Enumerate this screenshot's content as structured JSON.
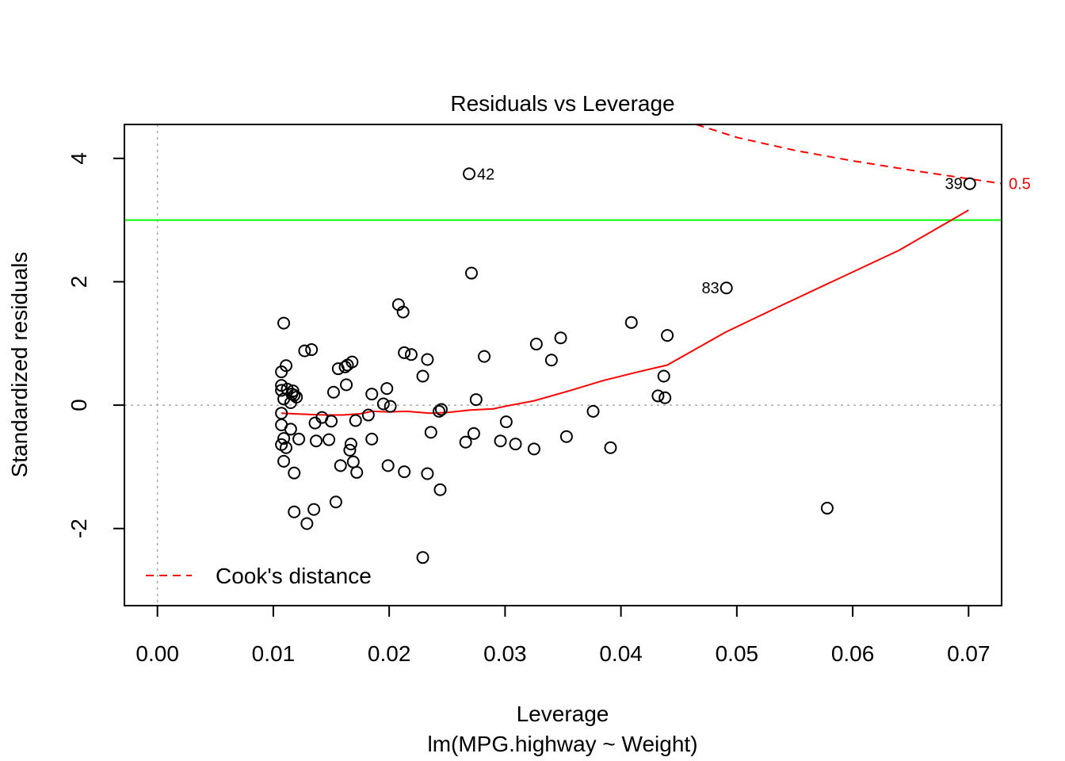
{
  "chart_data": {
    "type": "scatter",
    "title": "Residuals vs Leverage",
    "xlabel": "Leverage",
    "subtitle": "lm(MPG.highway ~ Weight)",
    "ylabel": "Standardized residuals",
    "xlim": [
      -0.00285,
      0.07285
    ],
    "ylim": [
      -3.25,
      4.55
    ],
    "xticks": [
      0.0,
      0.01,
      0.02,
      0.03,
      0.04,
      0.05,
      0.06,
      0.07
    ],
    "xtick_labels": [
      "0.00",
      "0.01",
      "0.02",
      "0.03",
      "0.04",
      "0.05",
      "0.06",
      "0.07"
    ],
    "yticks": [
      -2,
      0,
      2,
      4
    ],
    "ytick_labels": [
      "-2",
      "0",
      "2",
      "4"
    ],
    "zero_reference_lines": true,
    "threshold_line": {
      "y": 3,
      "color": "#00ff00"
    },
    "cooks_contour": {
      "level_label": "0.5",
      "color": "#ff0000",
      "x": [
        0.0465,
        0.05,
        0.055,
        0.06,
        0.065,
        0.07,
        0.0729
      ],
      "y": [
        4.55,
        4.34,
        4.13,
        3.96,
        3.81,
        3.67,
        3.59
      ]
    },
    "smoother": {
      "color": "#ff0000",
      "x": [
        0.0107,
        0.013,
        0.0145,
        0.016,
        0.0175,
        0.0185,
        0.02,
        0.0215,
        0.0235,
        0.025,
        0.027,
        0.029,
        0.0297,
        0.0325,
        0.0355,
        0.0385,
        0.0415,
        0.044,
        0.049,
        0.054,
        0.059,
        0.064,
        0.07
      ],
      "y": [
        -0.13,
        -0.15,
        -0.16,
        -0.16,
        -0.14,
        -0.1,
        -0.11,
        -0.1,
        -0.13,
        -0.12,
        -0.08,
        -0.06,
        -0.03,
        0.07,
        0.23,
        0.4,
        0.54,
        0.65,
        1.18,
        1.63,
        2.07,
        2.51,
        3.16
      ]
    },
    "point_labels": [
      {
        "text": "42",
        "x": 0.0269,
        "y": 3.75,
        "side": "right"
      },
      {
        "text": "39",
        "x": 0.0701,
        "y": 3.59,
        "side": "left"
      },
      {
        "text": "83",
        "x": 0.0491,
        "y": 1.9,
        "side": "left"
      }
    ],
    "legend": {
      "entries": [
        "Cook's distance"
      ],
      "position": "bottom-left"
    },
    "points": [
      [
        0.0269,
        3.75
      ],
      [
        0.0701,
        3.59
      ],
      [
        0.0491,
        1.9
      ],
      [
        0.0271,
        2.14
      ],
      [
        0.0578,
        -1.67
      ],
      [
        0.0109,
        1.33
      ],
      [
        0.0127,
        0.88
      ],
      [
        0.0133,
        0.9
      ],
      [
        0.0111,
        0.64
      ],
      [
        0.0107,
        0.54
      ],
      [
        0.0156,
        0.59
      ],
      [
        0.0162,
        0.62
      ],
      [
        0.0164,
        0.65
      ],
      [
        0.0168,
        0.7
      ],
      [
        0.0163,
        0.33
      ],
      [
        0.0107,
        0.32
      ],
      [
        0.0107,
        0.24
      ],
      [
        0.0112,
        0.26
      ],
      [
        0.0117,
        0.23
      ],
      [
        0.0116,
        0.18
      ],
      [
        0.0118,
        0.16
      ],
      [
        0.012,
        0.13
      ],
      [
        0.0109,
        0.1
      ],
      [
        0.0115,
        0.04
      ],
      [
        0.0152,
        0.21
      ],
      [
        0.0107,
        -0.13
      ],
      [
        0.0107,
        -0.32
      ],
      [
        0.0115,
        -0.39
      ],
      [
        0.0109,
        -0.54
      ],
      [
        0.0107,
        -0.64
      ],
      [
        0.0111,
        -0.69
      ],
      [
        0.0109,
        -0.91
      ],
      [
        0.0118,
        -1.1
      ],
      [
        0.0122,
        -0.55
      ],
      [
        0.0136,
        -0.29
      ],
      [
        0.0142,
        -0.2
      ],
      [
        0.015,
        -0.26
      ],
      [
        0.0137,
        -0.58
      ],
      [
        0.0148,
        -0.56
      ],
      [
        0.0158,
        -0.98
      ],
      [
        0.0167,
        -0.63
      ],
      [
        0.0166,
        -0.73
      ],
      [
        0.0169,
        -0.92
      ],
      [
        0.0172,
        -1.09
      ],
      [
        0.0171,
        -0.25
      ],
      [
        0.0182,
        -0.16
      ],
      [
        0.0185,
        0.18
      ],
      [
        0.0195,
        0.02
      ],
      [
        0.0198,
        0.27
      ],
      [
        0.0201,
        -0.02
      ],
      [
        0.0185,
        -0.55
      ],
      [
        0.0199,
        -0.98
      ],
      [
        0.0213,
        -1.08
      ],
      [
        0.0208,
        1.63
      ],
      [
        0.0212,
        1.51
      ],
      [
        0.0213,
        0.85
      ],
      [
        0.0219,
        0.82
      ],
      [
        0.0233,
        0.74
      ],
      [
        0.0229,
        0.47
      ],
      [
        0.0236,
        -0.44
      ],
      [
        0.0243,
        -0.1
      ],
      [
        0.0245,
        -0.07
      ],
      [
        0.0233,
        -1.11
      ],
      [
        0.0244,
        -1.37
      ],
      [
        0.0229,
        -2.47
      ],
      [
        0.0118,
        -1.73
      ],
      [
        0.0135,
        -1.69
      ],
      [
        0.0154,
        -1.57
      ],
      [
        0.0129,
        -1.92
      ],
      [
        0.0275,
        0.09
      ],
      [
        0.0282,
        0.79
      ],
      [
        0.0273,
        -0.46
      ],
      [
        0.0266,
        -0.6
      ],
      [
        0.0296,
        -0.58
      ],
      [
        0.0301,
        -0.27
      ],
      [
        0.0309,
        -0.63
      ],
      [
        0.0325,
        -0.71
      ],
      [
        0.0327,
        0.99
      ],
      [
        0.034,
        0.73
      ],
      [
        0.0348,
        1.09
      ],
      [
        0.0353,
        -0.51
      ],
      [
        0.0376,
        -0.1
      ],
      [
        0.0391,
        -0.69
      ],
      [
        0.0409,
        1.34
      ],
      [
        0.044,
        1.13
      ],
      [
        0.0437,
        0.47
      ],
      [
        0.0432,
        0.15
      ],
      [
        0.0438,
        0.12
      ]
    ]
  }
}
